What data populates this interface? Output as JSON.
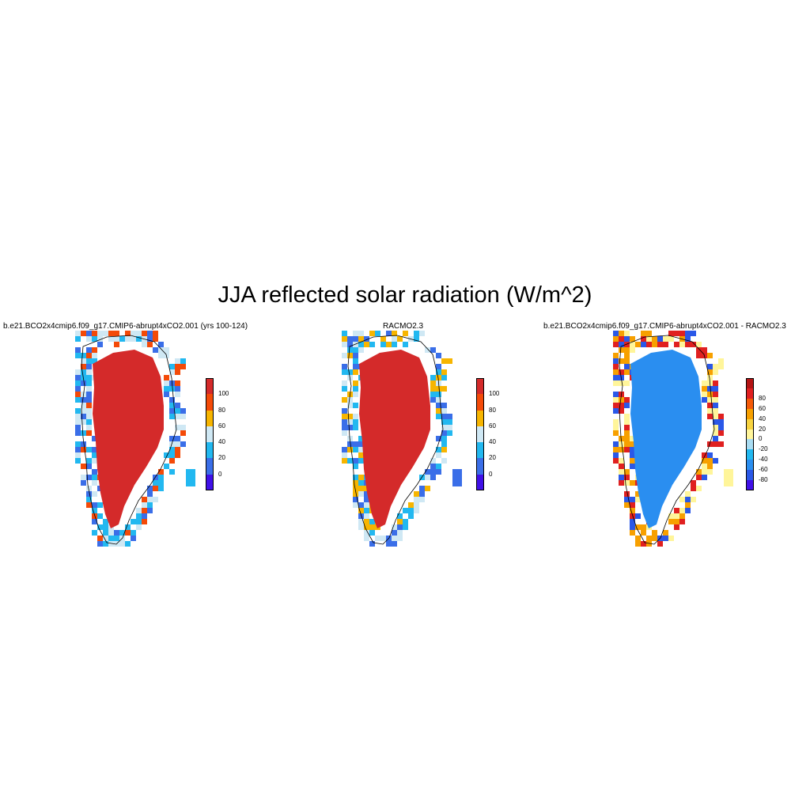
{
  "title": "JJA reflected solar radiation (W/m^2)",
  "panels": [
    {
      "id": "model",
      "title": "b.e21.BCO2x4cmip6.f09_g17.CMIP6-abrupt4xCO2.001 (yrs 100-124)",
      "colorbar": {
        "colors": [
          "#4010e8",
          "#3a6ee8",
          "#22b8f0",
          "#cfe8f4",
          "#f7b500",
          "#f44a08",
          "#d42a2a"
        ],
        "labels": [
          "0",
          "20",
          "40",
          "60",
          "80",
          "100"
        ]
      },
      "fill_color": "#d42a2a",
      "edge_colors": [
        "#f7b500",
        "#f44a08",
        "#22b8f0",
        "#cfe8f4",
        "#3a6ee8"
      ]
    },
    {
      "id": "obs",
      "title": "RACMO2.3",
      "colorbar": {
        "colors": [
          "#4010e8",
          "#3a6ee8",
          "#22b8f0",
          "#cfe8f4",
          "#f7b500",
          "#f44a08",
          "#d42a2a"
        ],
        "labels": [
          "0",
          "20",
          "40",
          "60",
          "80",
          "100"
        ]
      },
      "fill_color": "#d42a2a",
      "edge_colors": [
        "#f44a08",
        "#f7b500",
        "#3a6ee8",
        "#22b8f0",
        "#cfe8f4"
      ]
    },
    {
      "id": "diff",
      "title": "b.e21.BCO2x4cmip6.f09_g17.CMIP6-abrupt4xCO2.001 - RACMO2.3",
      "colorbar": {
        "colors": [
          "#4010e8",
          "#2a58e8",
          "#2a8ef0",
          "#22b8f0",
          "#a9dcf2",
          "#fff59a",
          "#f7d340",
          "#f7a000",
          "#f45a08",
          "#e02020",
          "#b41414"
        ],
        "labels": [
          "-80",
          "-60",
          "-40",
          "-20",
          "0",
          "20",
          "40",
          "60",
          "80"
        ]
      },
      "fill_color": "#2a8ef0",
      "edge_colors": [
        "#4010e8",
        "#2a58e8",
        "#fff59a",
        "#f7a000",
        "#e02020"
      ]
    }
  ]
}
